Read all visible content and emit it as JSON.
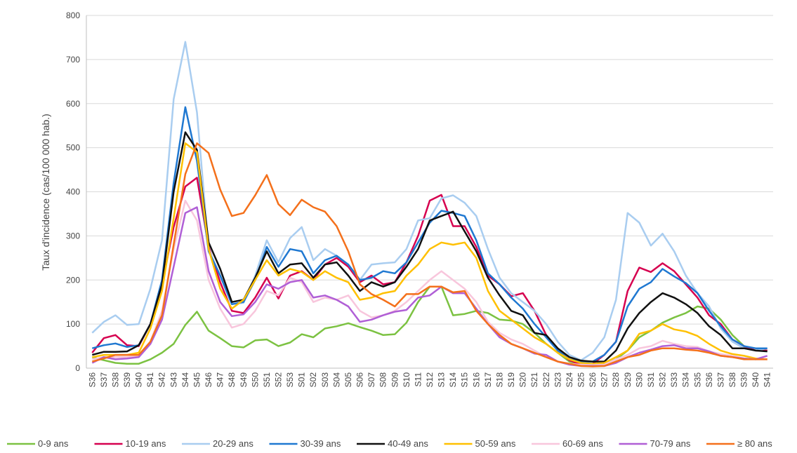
{
  "chart_data": {
    "type": "line",
    "y_label": "Taux d'incidence  (cas/100 000 hab.)",
    "categories": [
      "S36",
      "S37",
      "S38",
      "S39",
      "S40",
      "S41",
      "S42",
      "S43",
      "S44",
      "S45",
      "S46",
      "S47",
      "S48",
      "S49",
      "S50",
      "S51",
      "S52",
      "S53",
      "S01",
      "S02",
      "S03",
      "S04",
      "S05",
      "S06",
      "S07",
      "S08",
      "S09",
      "S10",
      "S11",
      "S12",
      "S13",
      "S14",
      "S15",
      "S16",
      "S17",
      "S18",
      "S19",
      "S20",
      "S21",
      "S22",
      "S23",
      "S24",
      "S25",
      "S26",
      "S27",
      "S28",
      "S29",
      "S30",
      "S31",
      "S32",
      "S33",
      "S34",
      "S35",
      "S36",
      "S37",
      "S38",
      "S39",
      "S40",
      "S41"
    ],
    "ylim": [
      0,
      800
    ],
    "yticks": [
      0,
      100,
      200,
      300,
      400,
      500,
      600,
      700,
      800
    ],
    "grid": true,
    "legend": "bottom",
    "series": [
      {
        "name": "0-9 ans",
        "color": "#7cc242",
        "values": [
          25,
          18,
          12,
          10,
          10,
          20,
          35,
          55,
          98,
          128,
          85,
          68,
          50,
          47,
          63,
          65,
          50,
          58,
          77,
          70,
          90,
          95,
          102,
          93,
          85,
          75,
          77,
          103,
          150,
          185,
          185,
          120,
          123,
          130,
          125,
          110,
          108,
          100,
          80,
          55,
          35,
          15,
          8,
          7,
          10,
          20,
          40,
          70,
          85,
          103,
          115,
          125,
          140,
          135,
          110,
          75,
          50,
          40,
          40
        ]
      },
      {
        "name": "10-19 ans",
        "color": "#d6004f",
        "values": [
          35,
          68,
          75,
          52,
          50,
          100,
          190,
          320,
          412,
          432,
          275,
          195,
          130,
          125,
          160,
          205,
          158,
          210,
          220,
          200,
          235,
          250,
          230,
          195,
          210,
          190,
          195,
          240,
          300,
          380,
          393,
          322,
          322,
          275,
          210,
          190,
          163,
          170,
          130,
          75,
          40,
          18,
          8,
          10,
          30,
          60,
          175,
          228,
          218,
          238,
          220,
          190,
          160,
          120,
          100,
          65,
          50,
          40,
          40
        ]
      },
      {
        "name": "20-29 ans",
        "color": "#a9cdf0",
        "values": [
          80,
          105,
          120,
          98,
          100,
          180,
          290,
          610,
          740,
          580,
          270,
          210,
          145,
          148,
          210,
          290,
          240,
          295,
          320,
          245,
          270,
          255,
          235,
          200,
          235,
          238,
          240,
          270,
          335,
          340,
          385,
          392,
          375,
          345,
          270,
          205,
          170,
          150,
          130,
          100,
          60,
          30,
          18,
          35,
          70,
          155,
          352,
          330,
          278,
          305,
          265,
          210,
          170,
          140,
          90,
          60,
          45,
          40,
          45
        ]
      },
      {
        "name": "30-39 ans",
        "color": "#1f78d1",
        "values": [
          45,
          52,
          56,
          48,
          52,
          100,
          200,
          420,
          592,
          470,
          265,
          210,
          145,
          150,
          200,
          275,
          230,
          270,
          265,
          215,
          245,
          255,
          235,
          200,
          205,
          220,
          215,
          240,
          285,
          330,
          357,
          352,
          345,
          290,
          215,
          190,
          160,
          135,
          100,
          70,
          40,
          20,
          15,
          15,
          30,
          60,
          140,
          180,
          195,
          225,
          208,
          193,
          170,
          130,
          95,
          65,
          50,
          45,
          45
        ]
      },
      {
        "name": "40-49 ans",
        "color": "#111111",
        "values": [
          30,
          37,
          37,
          38,
          52,
          100,
          190,
          400,
          535,
          495,
          285,
          225,
          150,
          155,
          205,
          265,
          215,
          235,
          238,
          205,
          235,
          240,
          210,
          175,
          195,
          185,
          195,
          230,
          270,
          335,
          345,
          355,
          310,
          265,
          205,
          165,
          130,
          120,
          80,
          75,
          45,
          25,
          17,
          15,
          15,
          40,
          90,
          125,
          150,
          170,
          160,
          145,
          125,
          95,
          75,
          45,
          45,
          40,
          38
        ]
      },
      {
        "name": "50-59 ans",
        "color": "#ffc000",
        "values": [
          25,
          30,
          30,
          30,
          35,
          90,
          175,
          340,
          510,
          490,
          270,
          180,
          135,
          155,
          200,
          245,
          210,
          225,
          218,
          200,
          220,
          205,
          195,
          155,
          160,
          170,
          175,
          210,
          235,
          270,
          285,
          280,
          285,
          250,
          175,
          130,
          110,
          90,
          70,
          55,
          35,
          20,
          12,
          10,
          12,
          25,
          40,
          78,
          85,
          100,
          88,
          83,
          73,
          55,
          40,
          32,
          28,
          22,
          20
        ]
      },
      {
        "name": "60-69 ans",
        "color": "#f8c6dc",
        "values": [
          20,
          25,
          25,
          25,
          28,
          60,
          130,
          270,
          380,
          335,
          200,
          135,
          92,
          100,
          130,
          175,
          165,
          205,
          195,
          150,
          160,
          155,
          165,
          130,
          115,
          120,
          130,
          150,
          175,
          200,
          220,
          200,
          180,
          150,
          105,
          80,
          65,
          55,
          40,
          25,
          15,
          10,
          8,
          7,
          8,
          20,
          30,
          45,
          50,
          62,
          55,
          50,
          48,
          38,
          32,
          28,
          22,
          20,
          20
        ]
      },
      {
        "name": "70-79 ans",
        "color": "#b05fd6",
        "values": [
          12,
          25,
          20,
          22,
          25,
          55,
          110,
          230,
          352,
          365,
          220,
          150,
          118,
          122,
          150,
          190,
          180,
          195,
          200,
          160,
          165,
          155,
          140,
          105,
          110,
          120,
          128,
          132,
          160,
          165,
          185,
          170,
          170,
          135,
          100,
          70,
          55,
          45,
          33,
          30,
          15,
          8,
          5,
          5,
          5,
          12,
          25,
          35,
          42,
          50,
          52,
          45,
          45,
          38,
          28,
          25,
          22,
          20,
          28
        ]
      },
      {
        "name": "≥ 80 ans",
        "color": "#f4701b",
        "values": [
          15,
          22,
          30,
          30,
          30,
          60,
          120,
          280,
          440,
          510,
          488,
          405,
          345,
          352,
          392,
          438,
          372,
          347,
          382,
          365,
          355,
          322,
          265,
          190,
          168,
          155,
          140,
          168,
          168,
          185,
          185,
          172,
          175,
          130,
          100,
          75,
          55,
          45,
          35,
          25,
          15,
          10,
          5,
          4,
          5,
          15,
          25,
          30,
          40,
          45,
          45,
          42,
          40,
          35,
          28,
          25,
          20,
          20,
          20
        ]
      }
    ]
  }
}
